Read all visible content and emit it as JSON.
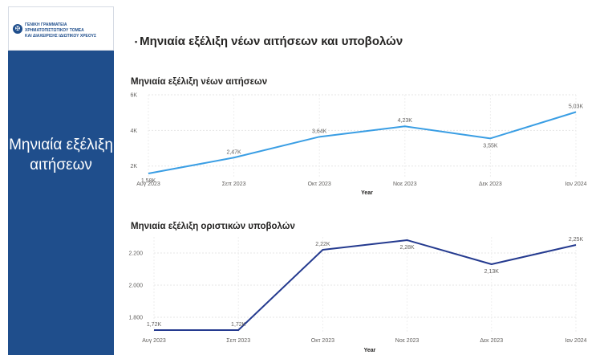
{
  "sidebar": {
    "logo_line1": "ΓΕΝΙΚΗ ΓΡΑΜΜΑΤΕΙΑ ΧΡΗΜΑΤΟΠΙΣΤΩΤΙΚΟΥ ΤΟΜΕΑ",
    "logo_line2": "ΚΑΙ ΔΙΑΧΕΙΡΙΣΗΣ ΙΔΙΩΤΙΚΟΥ ΧΡΕΟΥΣ",
    "title": "Μηνιαία εξέλιξη αιτήσεων",
    "color": "#1f4e8c"
  },
  "page": {
    "title": "Μηνιαία εξέλιξη νέων αιτήσεων και υποβολών"
  },
  "chart_data": [
    {
      "type": "line",
      "title": "Μηνιαία εξέλιξη νέων αιτήσεων",
      "xlabel": "Year",
      "ylabel": "",
      "categories": [
        "Αυγ 2023",
        "Σεπ 2023",
        "Οκτ 2023",
        "Νοε 2023",
        "Δεκ 2023",
        "Ιαν 2024"
      ],
      "values": [
        1580,
        2470,
        3640,
        4230,
        3550,
        5030
      ],
      "data_labels": [
        "1,58K",
        "2,47K",
        "3,64K",
        "4,23K",
        "3,55K",
        "5,03K"
      ],
      "ylim": [
        1400,
        6000
      ],
      "yticks": [
        2000,
        4000,
        6000
      ],
      "ytick_labels": [
        "2K",
        "4K",
        "6K"
      ],
      "grid": true,
      "color": "#3a9ee4"
    },
    {
      "type": "line",
      "title": "Μηνιαία εξέλιξη οριστικών υποβολών",
      "xlabel": "Year",
      "ylabel": "",
      "categories": [
        "Αυγ 2023",
        "Σεπ 2023",
        "Οκτ 2023",
        "Νοε 2023",
        "Δεκ 2023",
        "Ιαν 2024"
      ],
      "values": [
        1720,
        1720,
        2220,
        2280,
        2130,
        2250
      ],
      "data_labels": [
        "1,72K",
        "1,72K",
        "2,22K",
        "2,28K",
        "2,13K",
        "2,25K"
      ],
      "ylim": [
        1700,
        2300
      ],
      "yticks": [
        1800,
        2000,
        2200
      ],
      "ytick_labels": [
        "1.800",
        "2.000",
        "2.200"
      ],
      "grid": true,
      "color": "#243a8f"
    }
  ]
}
